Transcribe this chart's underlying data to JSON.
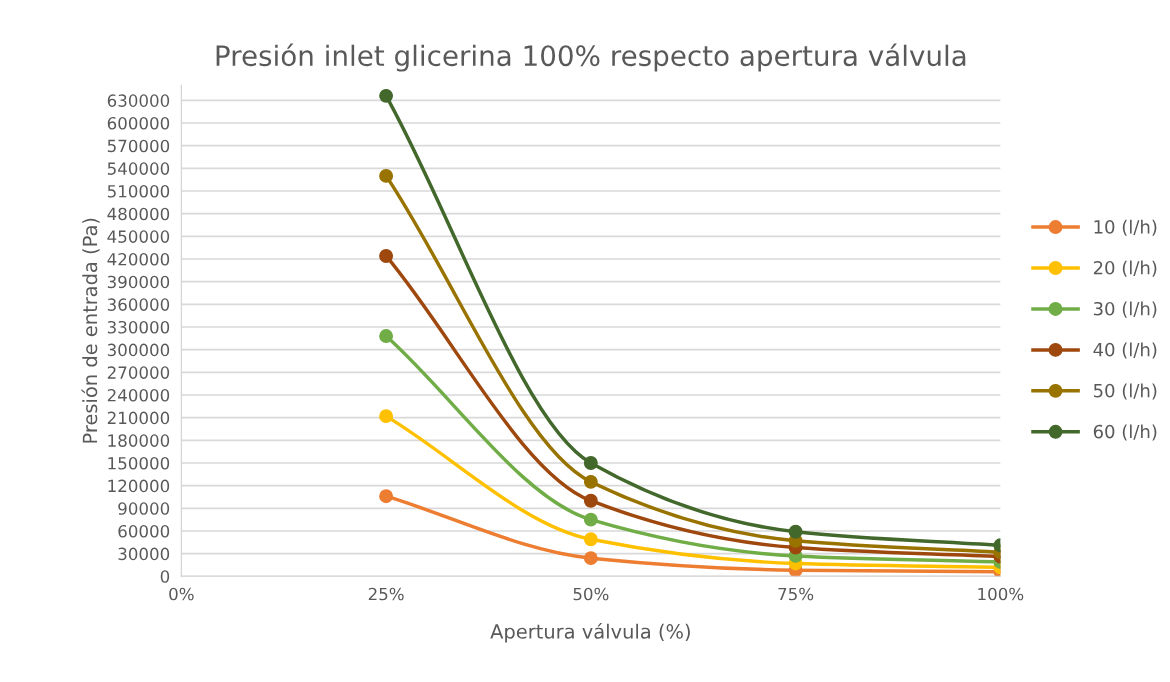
{
  "chart_data": {
    "type": "line",
    "title": "Presión inlet glicerina 100% respecto apertura válvula",
    "xlabel": "Apertura válvula (%)",
    "ylabel": "Presión de entrada (Pa)",
    "x": [
      0.25,
      0.5,
      0.75,
      1.0
    ],
    "series": [
      {
        "name": "10 (l/h)",
        "color": "#ed7d31",
        "values": [
          106000,
          24000,
          8000,
          6000
        ]
      },
      {
        "name": "20 (l/h)",
        "color": "#ffc000",
        "values": [
          212000,
          49000,
          17000,
          12000
        ]
      },
      {
        "name": "30 (l/h)",
        "color": "#70ad47",
        "values": [
          318000,
          75000,
          27000,
          19000
        ]
      },
      {
        "name": "40 (l/h)",
        "color": "#9e480e",
        "values": [
          424000,
          100000,
          38000,
          26000
        ]
      },
      {
        "name": "50 (l/h)",
        "color": "#997300",
        "values": [
          530000,
          125000,
          47000,
          32000
        ]
      },
      {
        "name": "60 (l/h)",
        "color": "#43682b",
        "values": [
          636000,
          150000,
          59000,
          41000
        ]
      }
    ],
    "xlim": [
      0,
      1.0
    ],
    "xticks": [
      {
        "value": 0,
        "label": "0%"
      },
      {
        "value": 0.25,
        "label": "25%"
      },
      {
        "value": 0.5,
        "label": "50%"
      },
      {
        "value": 0.75,
        "label": "75%"
      },
      {
        "value": 1.0,
        "label": "100%"
      }
    ],
    "ylim": [
      0,
      650000
    ],
    "yticks": [
      0,
      30000,
      60000,
      90000,
      120000,
      150000,
      180000,
      210000,
      240000,
      270000,
      300000,
      330000,
      360000,
      390000,
      420000,
      450000,
      480000,
      510000,
      540000,
      570000,
      600000,
      630000
    ],
    "grid": "y",
    "legend": "right",
    "marker": "circle",
    "line_style": "solid"
  }
}
